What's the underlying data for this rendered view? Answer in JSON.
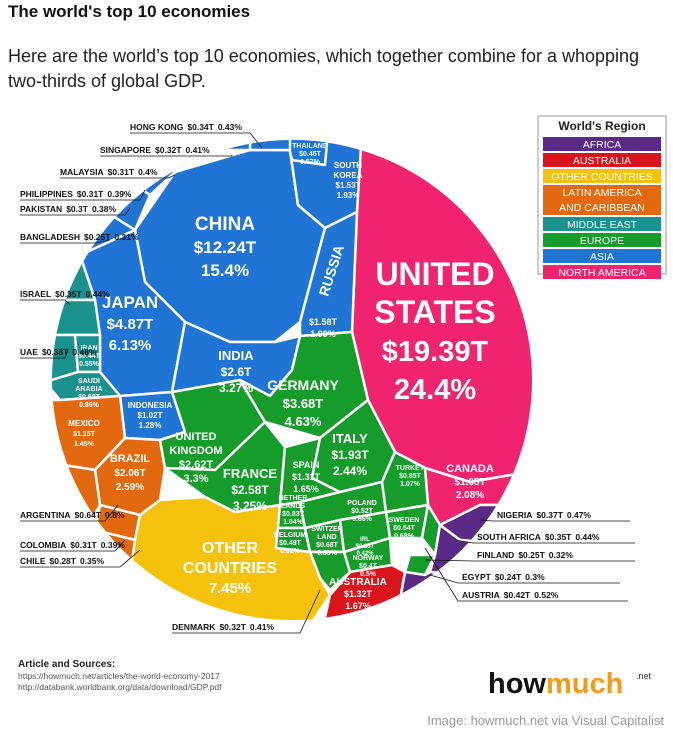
{
  "header": {
    "title": "The world's top 10 economies",
    "subtitle": "Here are the world’s top 10 economies, which together combine for a whopping two-thirds of global GDP."
  },
  "legend": {
    "title": "World's Region",
    "items": [
      {
        "label": "AFRICA",
        "color": "#5a2a86"
      },
      {
        "label": "AUSTRALIA",
        "color": "#d9141b"
      },
      {
        "label": "OTHER COUNTRIES",
        "color": "#f4c20d"
      },
      {
        "label": [
          "LATIN AMERICA",
          "AND CARIBBEAN"
        ],
        "color": "#e2690f"
      },
      {
        "label": "MIDDLE EAST",
        "color": "#19918c"
      },
      {
        "label": "EUROPE",
        "color": "#169c2a"
      },
      {
        "label": "ASIA",
        "color": "#1f74d4"
      },
      {
        "label": "NORTH AMERICA",
        "color": "#f0236f"
      }
    ]
  },
  "cells": [
    {
      "name": [
        "CHINA"
      ],
      "gdp": "$12.24T",
      "share": "15.4%"
    },
    {
      "name": [
        "JAPAN"
      ],
      "gdp": "$4.87T",
      "share": "6.13%"
    },
    {
      "name": [
        "INDIA"
      ],
      "gdp": "$2.6T",
      "share": "3.27%"
    },
    {
      "name": [
        "UNITED",
        "STATES"
      ],
      "gdp": "$19.39T",
      "share": "24.4%"
    },
    {
      "name": [
        "RUSSIA"
      ],
      "gdp": "$1.58T",
      "share": "1.99%"
    },
    {
      "name": [
        "GERMANY"
      ],
      "gdp": "$3.68T",
      "share": "4.63%"
    },
    {
      "name": [
        "UNITED",
        "KINGDOM"
      ],
      "gdp": "$2.62T",
      "share": "3.3%"
    },
    {
      "name": [
        "FRANCE"
      ],
      "gdp": "$2.58T",
      "share": "3.25%"
    },
    {
      "name": [
        "ITALY"
      ],
      "gdp": "$1.93T",
      "share": "2.44%"
    },
    {
      "name": [
        "SPAIN"
      ],
      "gdp": "$1.31T",
      "share": "1.65%"
    },
    {
      "name": [
        "BRAZIL"
      ],
      "gdp": "$2.06T",
      "share": "2.59%"
    },
    {
      "name": [
        "CANADA"
      ],
      "gdp": "$1.65T",
      "share": "2.08%"
    },
    {
      "name": [
        "SOUTH",
        "KOREA"
      ],
      "gdp": "$1.53T",
      "share": "1.93%"
    },
    {
      "name": [
        "THAILAND"
      ],
      "gdp": "$0.45T",
      "share": "0.57%"
    },
    {
      "name": [
        "INDONESIA"
      ],
      "gdp": "$1.02T",
      "share": "1.28%"
    },
    {
      "name": [
        "MEXICO"
      ],
      "gdp": "$1.15T",
      "share": "1.45%"
    },
    {
      "name": [
        "IRAN"
      ],
      "gdp": "$0.44T",
      "share": "0.55%"
    },
    {
      "name": [
        "SAUDI",
        "ARABIA"
      ],
      "gdp": "$0.68T",
      "share": "0.86%"
    },
    {
      "name": [
        "NETHER",
        "LANDS"
      ],
      "gdp": "$0.83T",
      "share": "1.04%"
    },
    {
      "name": [
        "BELGIUM"
      ],
      "gdp": "$0.49T",
      "share": "0.62%"
    },
    {
      "name": [
        "SWITZER",
        "LAND"
      ],
      "gdp": "$0.68T",
      "share": "0.85%"
    },
    {
      "name": [
        "POLAND"
      ],
      "gdp": "$0.52T",
      "share": "0.66%"
    },
    {
      "name": [
        "TURKEY"
      ],
      "gdp": "$0.85T",
      "share": "1.07%"
    },
    {
      "name": [
        "SWEDEN"
      ],
      "gdp": "$0.54T",
      "share": "0.68%"
    },
    {
      "name": [
        "NORWAY"
      ],
      "gdp": "$0.4T",
      "share": "0.5%"
    },
    {
      "name": [
        "IRL"
      ],
      "gdp": "$0.33T",
      "share": "0.42%"
    },
    {
      "name": [
        "OTHER",
        "COUNTRIES"
      ],
      "share": "7.45%"
    },
    {
      "name": [
        "AUSTRALIA"
      ],
      "gdp": "$1.32T",
      "share": "1.67%"
    }
  ],
  "callouts": [
    {
      "name": "HONG KONG",
      "gdp": "$0.34T",
      "share": "0.43%"
    },
    {
      "name": "SINGAPORE",
      "gdp": "$0.32T",
      "share": "0.41%"
    },
    {
      "name": "MALAYSIA",
      "gdp": "$0.31T",
      "share": "0.4%"
    },
    {
      "name": "PHILIPPINES",
      "gdp": "$0.31T",
      "share": "0.39%"
    },
    {
      "name": "PAKISTAN",
      "gdp": "$0.3T",
      "share": "0.38%"
    },
    {
      "name": "BANGLADESH",
      "gdp": "$0.25T",
      "share": "0.31%"
    },
    {
      "name": "ISRAEL",
      "gdp": "$0.35T",
      "share": "0.44%"
    },
    {
      "name": "UAE",
      "gdp": "$0.38T",
      "share": "0.48%"
    },
    {
      "name": "ARGENTINA",
      "gdp": "$0.64T",
      "share": "0.8%"
    },
    {
      "name": "COLOMBIA",
      "gdp": "$0.31T",
      "share": "0.39%"
    },
    {
      "name": "CHILE",
      "gdp": "$0.28T",
      "share": "0.35%"
    },
    {
      "name": "DENMARK",
      "gdp": "$0.32T",
      "share": "0.41%"
    },
    {
      "name": "NIGERIA",
      "gdp": "$0.37T",
      "share": "0.47%"
    },
    {
      "name": "SOUTH AFRICA",
      "gdp": "$0.35T",
      "share": "0.44%"
    },
    {
      "name": "FINLAND",
      "gdp": "$0.25T",
      "share": "0.32%"
    },
    {
      "name": "EGYPT",
      "gdp": "$0.24T",
      "share": "0.3%"
    },
    {
      "name": "AUSTRIA",
      "gdp": "$0.42T",
      "share": "0.52%"
    }
  ],
  "footer": {
    "sources_title": "Article and Sources:",
    "sources": [
      "https://howmuch.net/articles/the-world-economy-2017",
      "http://databank.worldbank.org/data/download/GDP.pdf"
    ],
    "logo": [
      "how",
      "much",
      ".net"
    ],
    "credit": "Image: howmuch.net via Visual Capitalist"
  }
}
